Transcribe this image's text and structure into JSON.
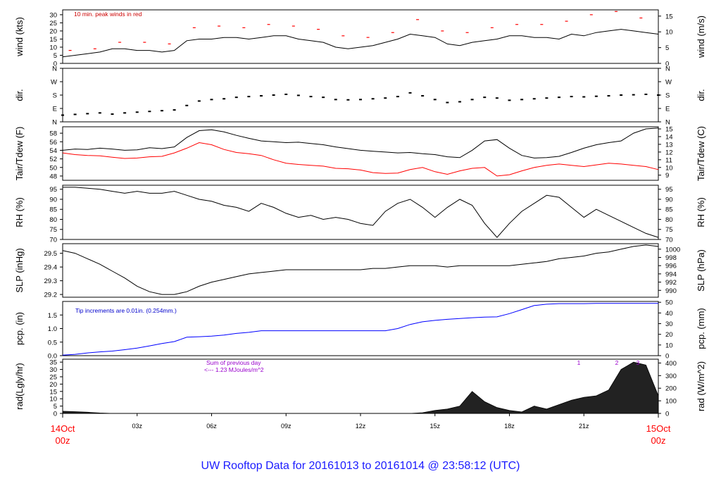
{
  "figure": {
    "title": "UW Rooftop Data for 20161013  to  20161014 @ 23:58:12  (UTC)",
    "title_color": "#1a1aff",
    "time_labels": [
      "03z",
      "06z",
      "09z",
      "12z",
      "15z",
      "18z",
      "21z"
    ],
    "start_label": [
      "14Oct",
      "00z"
    ],
    "end_label": [
      "15Oct",
      "00z"
    ],
    "date_label_color": "#ff0000"
  },
  "chart_data": [
    {
      "type": "line",
      "panel": "wind",
      "ylabel_left": "wind (kts)",
      "ylabel_right": "wind (m/s)",
      "ylim": [
        0,
        33
      ],
      "yticks_left": [
        "0",
        "5",
        "10",
        "15",
        "20",
        "25",
        "30"
      ],
      "yticks_right": [
        "0",
        "5",
        "10",
        "15"
      ],
      "annotation": "10 min. peak winds in red",
      "annotation_color": "#cc0000",
      "series": [
        {
          "name": "",
          "color": "#000000",
          "x": [
            0,
            0.5,
            1,
            1.5,
            2,
            2.5,
            3,
            3.5,
            4,
            4.5,
            5,
            5.5,
            6,
            6.5,
            7,
            7.5,
            8,
            8.5,
            9,
            9.5,
            10,
            10.5,
            11,
            11.5,
            12,
            12.5,
            13,
            13.5,
            14,
            14.5,
            15,
            15.5,
            16,
            16.5,
            17,
            17.5,
            18,
            18.5,
            19,
            19.5,
            20,
            20.5,
            21,
            21.5,
            22,
            22.5,
            23,
            23.5,
            24
          ],
          "y": [
            4,
            5,
            6,
            7,
            9,
            9,
            8,
            8,
            7,
            8,
            14,
            15,
            15,
            16,
            16,
            15,
            16,
            17,
            17,
            15,
            14,
            13,
            10,
            9,
            10,
            11,
            13,
            15,
            18,
            17,
            16,
            12,
            11,
            13,
            14,
            15,
            17,
            17,
            16,
            16,
            15,
            18,
            17,
            19,
            20,
            21,
            20,
            19,
            18
          ]
        },
        {
          "name": "",
          "color": "#ff0000",
          "style": "peak-dash",
          "x": [
            0.3,
            1.3,
            2.3,
            3.3,
            4.3,
            5.3,
            6.3,
            7.3,
            8.3,
            9.3,
            10.3,
            11.3,
            12.3,
            13.3,
            14.3,
            15.3,
            16.3,
            17.3,
            18.3,
            19.3,
            20.3,
            21.3,
            22.3,
            23.3
          ],
          "y": [
            8,
            9,
            13,
            13,
            12,
            22,
            23,
            22,
            24,
            23,
            21,
            17,
            16,
            19,
            27,
            20,
            19,
            22,
            24,
            24,
            26,
            30,
            32,
            28
          ]
        }
      ]
    },
    {
      "type": "scatter",
      "panel": "direction",
      "ylabel_left": "dir.",
      "ylabel_right": "dir.",
      "ylim": [
        0,
        360
      ],
      "yticks_left": [
        "N",
        "E",
        "S",
        "W",
        "N"
      ],
      "yticks_right": [
        "N",
        "E",
        "S",
        "W",
        "N"
      ],
      "series": [
        {
          "name": "",
          "color": "#000000",
          "x": [
            0,
            0.5,
            1,
            1.5,
            2,
            2.5,
            3,
            3.5,
            4,
            4.5,
            5,
            5.5,
            6,
            6.5,
            7,
            7.5,
            8,
            8.5,
            9,
            9.5,
            10,
            10.5,
            11,
            11.5,
            12,
            12.5,
            13,
            13.5,
            14,
            14.5,
            15,
            15.5,
            16,
            16.5,
            17,
            17.5,
            18,
            18.5,
            19,
            19.5,
            20,
            20.5,
            21,
            21.5,
            22,
            22.5,
            23,
            23.5,
            24
          ],
          "y": [
            45,
            50,
            55,
            60,
            52,
            60,
            65,
            70,
            75,
            80,
            110,
            140,
            150,
            155,
            165,
            170,
            175,
            180,
            185,
            178,
            170,
            165,
            150,
            148,
            150,
            155,
            160,
            170,
            195,
            175,
            150,
            130,
            135,
            150,
            165,
            160,
            145,
            150,
            155,
            160,
            165,
            170,
            168,
            172,
            175,
            180,
            182,
            185,
            180
          ]
        }
      ]
    },
    {
      "type": "line",
      "panel": "temperature",
      "ylabel_left": "Tair/Tdew (F)",
      "ylabel_right": "Tair/Tdew (C)",
      "ylim": [
        47,
        59.5
      ],
      "yticks_left": [
        "48",
        "50",
        "52",
        "54",
        "56",
        "58"
      ],
      "yticks_right": [
        "9",
        "10",
        "11",
        "12",
        "13",
        "14",
        "15"
      ],
      "series": [
        {
          "name": "",
          "color": "#000000",
          "x": [
            0,
            0.5,
            1,
            1.5,
            2,
            2.5,
            3,
            3.5,
            4,
            4.5,
            5,
            5.5,
            6,
            6.5,
            7,
            7.5,
            8,
            8.5,
            9,
            9.5,
            10,
            10.5,
            11,
            11.5,
            12,
            12.5,
            13,
            13.5,
            14,
            14.5,
            15,
            15.5,
            16,
            16.5,
            17,
            17.5,
            18,
            18.5,
            19,
            19.5,
            20,
            20.5,
            21,
            21.5,
            22,
            22.5,
            23,
            23.5,
            24
          ],
          "y": [
            54,
            54.3,
            54.2,
            54.5,
            54.3,
            54,
            54.1,
            54.6,
            54.4,
            54.8,
            57,
            58.6,
            58.8,
            58.3,
            57.5,
            56.8,
            56.2,
            56,
            55.8,
            55.9,
            55.6,
            55.3,
            54.8,
            54.4,
            54,
            53.8,
            53.6,
            53.4,
            53.5,
            53.2,
            53,
            52.5,
            52.3,
            54,
            56.2,
            56.5,
            54.5,
            52.8,
            52.2,
            52.3,
            52.6,
            53.5,
            54.5,
            55.3,
            55.8,
            56.2,
            58,
            59,
            59.2
          ]
        },
        {
          "name": "",
          "color": "#ff0000",
          "x": [
            0,
            0.5,
            1,
            1.5,
            2,
            2.5,
            3,
            3.5,
            4,
            4.5,
            5,
            5.5,
            6,
            6.5,
            7,
            7.5,
            8,
            8.5,
            9,
            9.5,
            10,
            10.5,
            11,
            11.5,
            12,
            12.5,
            13,
            13.5,
            14,
            14.5,
            15,
            15.5,
            16,
            16.5,
            17,
            17.5,
            18,
            18.5,
            19,
            19.5,
            20,
            20.5,
            21,
            21.5,
            22,
            22.5,
            23,
            23.5,
            24
          ],
          "y": [
            53.4,
            53,
            52.8,
            52.7,
            52.4,
            52.1,
            52.2,
            52.5,
            52.6,
            53.4,
            54.5,
            55.8,
            55.3,
            54.2,
            53.5,
            53.2,
            52.8,
            51.8,
            51,
            50.7,
            50.5,
            50.3,
            49.8,
            49.7,
            49.4,
            48.8,
            48.6,
            48.7,
            49.5,
            50,
            49,
            48.4,
            49.2,
            49.8,
            50,
            48,
            48.3,
            49.2,
            50,
            50.5,
            50.8,
            50.5,
            50.2,
            50.6,
            51,
            50.8,
            50.5,
            50.2,
            49.5
          ]
        }
      ]
    },
    {
      "type": "line",
      "panel": "humidity",
      "ylabel_left": "RH (%)",
      "ylabel_right": "RH (%)",
      "ylim": [
        70,
        97
      ],
      "yticks_left": [
        "70",
        "75",
        "80",
        "85",
        "90",
        "95"
      ],
      "yticks_right": [
        "70",
        "75",
        "80",
        "85",
        "90",
        "95"
      ],
      "series": [
        {
          "name": "",
          "color": "#000000",
          "x": [
            0,
            0.5,
            1,
            1.5,
            2,
            2.5,
            3,
            3.5,
            4,
            4.5,
            5,
            5.5,
            6,
            6.5,
            7,
            7.5,
            8,
            8.5,
            9,
            9.5,
            10,
            10.5,
            11,
            11.5,
            12,
            12.5,
            13,
            13.5,
            14,
            14.5,
            15,
            15.5,
            16,
            16.5,
            17,
            17.5,
            18,
            18.5,
            19,
            19.5,
            20,
            20.5,
            21,
            21.5,
            22,
            22.5,
            23,
            23.5,
            24
          ],
          "y": [
            96,
            96,
            95.5,
            95,
            94,
            93,
            94,
            93,
            93,
            94,
            92,
            90,
            89,
            87,
            86,
            84,
            88,
            86,
            83,
            81,
            82,
            80,
            81,
            80,
            78,
            77,
            84,
            88,
            90,
            86,
            81,
            86,
            90,
            87,
            78,
            71,
            78,
            84,
            88,
            92,
            91,
            86,
            81,
            85,
            82,
            79,
            76,
            73,
            71
          ]
        }
      ]
    },
    {
      "type": "line",
      "panel": "pressure",
      "ylabel_left": "SLP (inHg)",
      "ylabel_right": "SLP (hPa)",
      "ylim": [
        29.18,
        29.57
      ],
      "yticks_left": [
        "29.2",
        "29.3",
        "29.4",
        "29.5"
      ],
      "yticks_right": [
        "990",
        "992",
        "994",
        "996",
        "998",
        "1000"
      ],
      "series": [
        {
          "name": "",
          "color": "#000000",
          "x": [
            0,
            0.5,
            1,
            1.5,
            2,
            2.5,
            3,
            3.5,
            4,
            4.5,
            5,
            5.5,
            6,
            6.5,
            7,
            7.5,
            8,
            8.5,
            9,
            9.5,
            10,
            10.5,
            11,
            11.5,
            12,
            12.5,
            13,
            13.5,
            14,
            14.5,
            15,
            15.5,
            16,
            16.5,
            17,
            17.5,
            18,
            18.5,
            19,
            19.5,
            20,
            20.5,
            21,
            21.5,
            22,
            22.5,
            23,
            23.5,
            24
          ],
          "y": [
            29.52,
            29.5,
            29.46,
            29.42,
            29.37,
            29.32,
            29.26,
            29.22,
            29.2,
            29.2,
            29.22,
            29.26,
            29.29,
            29.31,
            29.33,
            29.35,
            29.36,
            29.37,
            29.38,
            29.38,
            29.38,
            29.38,
            29.38,
            29.38,
            29.38,
            29.39,
            29.39,
            29.4,
            29.41,
            29.41,
            29.41,
            29.4,
            29.41,
            29.41,
            29.41,
            29.41,
            29.41,
            29.42,
            29.43,
            29.44,
            29.46,
            29.47,
            29.48,
            29.5,
            29.51,
            29.53,
            29.55,
            29.56,
            29.55
          ]
        }
      ]
    },
    {
      "type": "area",
      "panel": "precipitation",
      "ylabel_left": "pcp. (in)",
      "ylabel_right": "pcp. (mm)",
      "ylim": [
        0,
        2.0
      ],
      "yticks_left": [
        "0.0",
        "0.5",
        "1.0",
        "1.5"
      ],
      "yticks_right": [
        "0",
        "10",
        "20",
        "30",
        "40",
        "50"
      ],
      "annotation": "Tip increments are 0.01in. (0.254mm.)",
      "annotation_color": "#0000cc",
      "series": [
        {
          "name": "",
          "color": "#0000ff",
          "x": [
            0,
            0.5,
            1,
            1.5,
            2,
            2.5,
            3,
            3.5,
            4,
            4.5,
            5,
            5.5,
            6,
            6.5,
            7,
            7.5,
            8,
            8.5,
            9,
            9.5,
            10,
            10.5,
            11,
            11.5,
            12,
            12.5,
            13,
            13.5,
            14,
            14.5,
            15,
            15.5,
            16,
            16.5,
            17,
            17.5,
            18,
            18.5,
            19,
            19.5,
            20,
            20.5,
            21,
            21.5,
            22,
            22.5,
            23,
            23.5,
            24
          ],
          "y": [
            0.02,
            0.05,
            0.1,
            0.14,
            0.17,
            0.22,
            0.28,
            0.36,
            0.45,
            0.52,
            0.68,
            0.7,
            0.72,
            0.76,
            0.82,
            0.86,
            0.92,
            0.92,
            0.92,
            0.92,
            0.92,
            0.92,
            0.92,
            0.92,
            0.92,
            0.92,
            0.92,
            1.0,
            1.15,
            1.25,
            1.3,
            1.34,
            1.37,
            1.4,
            1.42,
            1.43,
            1.55,
            1.7,
            1.85,
            1.9,
            1.92,
            1.92,
            1.92,
            1.93,
            1.93,
            1.93,
            1.93,
            1.93,
            1.93
          ]
        }
      ]
    },
    {
      "type": "area",
      "panel": "radiation",
      "ylabel_left": "rad(Lgly/hr)",
      "ylabel_right": "rad (W/m^2)",
      "ylim": [
        0,
        37
      ],
      "yticks_left": [
        "0",
        "5",
        "10",
        "15",
        "20",
        "25",
        "30",
        "35"
      ],
      "yticks_right": [
        "0",
        "100",
        "200",
        "300",
        "400"
      ],
      "annotation_lines": [
        "Sum of previous day",
        "<--- 1.23 MJoules/m^2"
      ],
      "annotation_color": "#9900cc",
      "markers": [
        "1",
        "2",
        "3"
      ],
      "series": [
        {
          "name": "",
          "color": "#000000",
          "x": [
            0,
            0.5,
            1,
            1.5,
            2,
            2.5,
            3,
            3.5,
            4,
            4.5,
            5,
            5.5,
            6,
            6.5,
            7,
            7.5,
            8,
            8.5,
            9,
            9.5,
            10,
            10.5,
            11,
            11.5,
            12,
            12.5,
            13,
            13.5,
            14,
            14.5,
            15,
            15.5,
            16,
            16.5,
            17,
            17.5,
            18,
            18.5,
            19,
            19.5,
            20,
            20.5,
            21,
            21.5,
            22,
            22.5,
            23,
            23.5,
            24
          ],
          "y": [
            1.5,
            1.2,
            0.8,
            0.3,
            0,
            0,
            0,
            0,
            0,
            0,
            0,
            0,
            0,
            0,
            0,
            0,
            0,
            0,
            0,
            0,
            0,
            0,
            0,
            0,
            0,
            0,
            0,
            0,
            0,
            0.5,
            2,
            3,
            5,
            15,
            8,
            4,
            2,
            1,
            5,
            3,
            6,
            9,
            11,
            12,
            16,
            30,
            35,
            33,
            12
          ]
        }
      ]
    }
  ]
}
